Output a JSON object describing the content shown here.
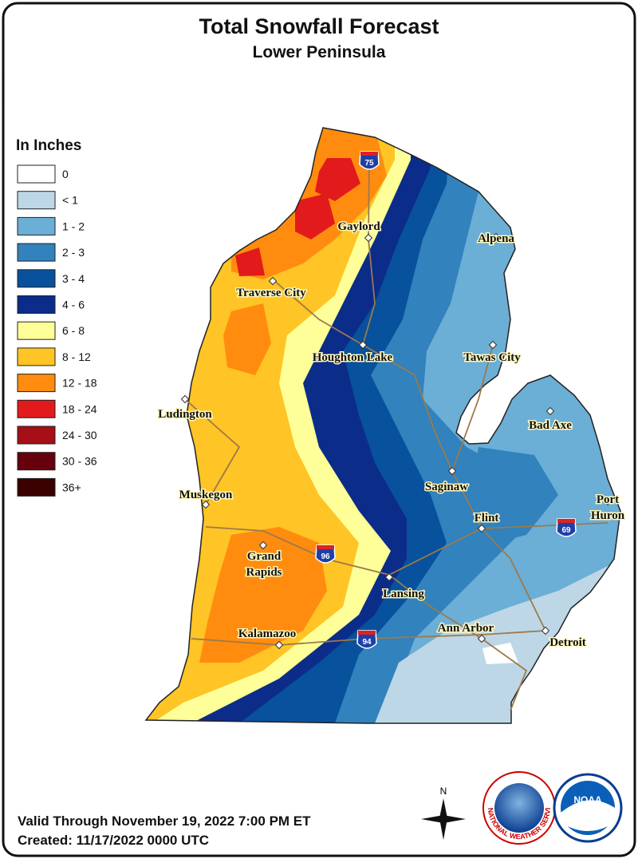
{
  "header": {
    "title": "Total Snowfall Forecast",
    "subtitle": "Lower Peninsula"
  },
  "legend": {
    "title": "In Inches",
    "items": [
      {
        "label": "0",
        "color": "#ffffff"
      },
      {
        "label": "< 1",
        "color": "#bdd7e7"
      },
      {
        "label": "1 - 2",
        "color": "#6baed6"
      },
      {
        "label": "2 - 3",
        "color": "#3182bd"
      },
      {
        "label": "3 - 4",
        "color": "#08519c"
      },
      {
        "label": "4 - 6",
        "color": "#0c2c8a"
      },
      {
        "label": "6 - 8",
        "color": "#ffff99"
      },
      {
        "label": "8 - 12",
        "color": "#ffc425"
      },
      {
        "label": "12 - 18",
        "color": "#ff8c0f"
      },
      {
        "label": "18 - 24",
        "color": "#e31a1c"
      },
      {
        "label": "24 - 30",
        "color": "#a50f15"
      },
      {
        "label": "30 - 36",
        "color": "#67000d"
      },
      {
        "label": "36+",
        "color": "#3b0000"
      }
    ]
  },
  "map": {
    "cities": [
      [
        "Gaylord"
      ],
      [
        "Alpena"
      ],
      [
        "Traverse City"
      ],
      [
        "Houghton Lake"
      ],
      [
        "Tawas City"
      ],
      [
        "Ludington"
      ],
      [
        "Bad Axe"
      ],
      [
        "Saginaw"
      ],
      [
        "Muskegon"
      ],
      [
        "Flint"
      ],
      [
        "Port",
        "Huron"
      ],
      [
        "Grand",
        "Rapids"
      ],
      [
        "Lansing"
      ],
      [
        "Kalamazoo"
      ],
      [
        "Ann Arbor"
      ],
      [
        "Detroit"
      ]
    ],
    "highways": [
      "75",
      "96",
      "69",
      "94"
    ]
  },
  "compass": "N",
  "logos": [
    "NATIONAL WEATHER SERVICE",
    "NOAA"
  ],
  "footer": {
    "valid": "Valid Through November 19, 2022 7:00 PM ET",
    "created": "Created: 11/17/2022 0000 UTC"
  }
}
